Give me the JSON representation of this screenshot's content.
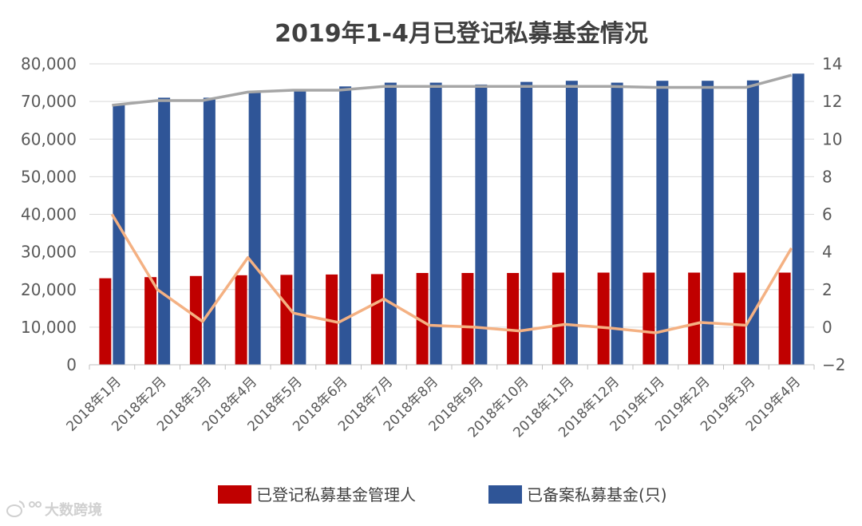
{
  "chart_data": {
    "type": "bar",
    "title": "2019年1-4月已登记私募基金情况",
    "categories": [
      "2018年1月",
      "2018年2月",
      "2018年3月",
      "2018年4月",
      "2018年5月",
      "2018年6月",
      "2018年7月",
      "2018年8月",
      "2018年9月",
      "2018年10月",
      "2018年11月",
      "2018年12月",
      "2019年1月",
      "2019年2月",
      "2019年3月",
      "2019年4月"
    ],
    "series": [
      {
        "name": "已登记私募基金管理人",
        "type": "bar",
        "axis": "left",
        "color": "#c00000",
        "values": [
          23000,
          23300,
          23600,
          23800,
          23900,
          24000,
          24100,
          24400,
          24400,
          24400,
          24500,
          24500,
          24500,
          24500,
          24500,
          24500
        ]
      },
      {
        "name": "已备案私募基金(只)",
        "type": "bar",
        "axis": "left",
        "color": "#2f5597",
        "values": [
          69000,
          71000,
          71000,
          72500,
          73000,
          74000,
          75000,
          75000,
          74500,
          75200,
          75500,
          75000,
          75500,
          75500,
          75600,
          77400
        ]
      },
      {
        "type": "line",
        "axis": "right",
        "color": "#a6a6a6",
        "values": [
          11.8,
          12.05,
          12.05,
          12.5,
          12.6,
          12.6,
          12.8,
          12.8,
          12.8,
          12.8,
          12.8,
          12.8,
          12.75,
          12.75,
          12.75,
          13.4
        ]
      },
      {
        "type": "line",
        "axis": "right",
        "color": "#f4b183",
        "values": [
          6.0,
          2.0,
          0.3,
          3.7,
          0.75,
          0.25,
          1.5,
          0.1,
          0.0,
          -0.2,
          0.15,
          -0.05,
          -0.3,
          0.25,
          0.1,
          4.2
        ]
      }
    ],
    "ylim": [
      0,
      80000
    ],
    "yticks_left": [
      "0",
      "10,000",
      "20,000",
      "30,000",
      "40,000",
      "50,000",
      "60,000",
      "70,000",
      "80,000"
    ],
    "ylim_right": [
      -2,
      14
    ],
    "yticks_right": [
      "−2",
      "0",
      "2",
      "4",
      "6",
      "8",
      "10",
      "12",
      "14"
    ],
    "xlabel": "",
    "ylabel": "",
    "grid": true,
    "legend_position": "bottom"
  },
  "watermark": {
    "text": "大数跨境"
  }
}
